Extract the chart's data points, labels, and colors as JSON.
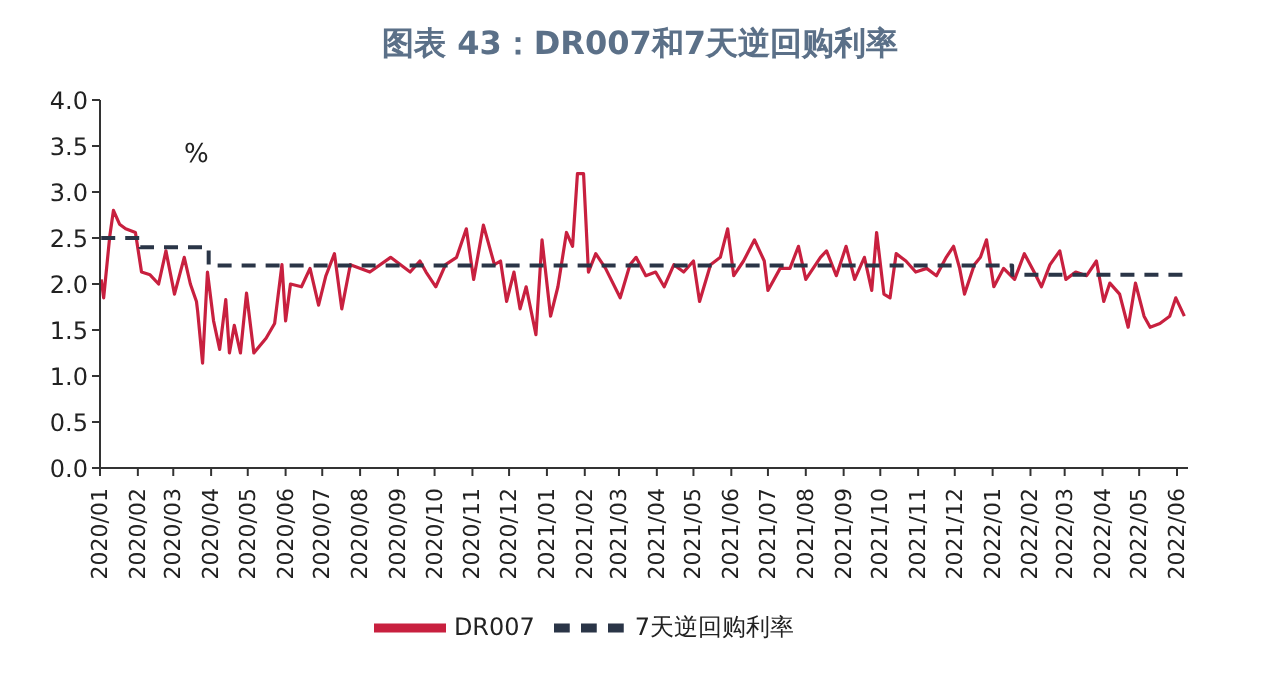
{
  "chart_data": {
    "type": "line",
    "title": "图表 43：DR007和7天逆回购利率",
    "ylabel": "%",
    "legend": "bottom",
    "xlim": [
      "2020-01-01",
      "2022-06-10"
    ],
    "xticks": [
      {
        "value": "2020-01",
        "label": "2020/01"
      },
      {
        "value": "2020-02",
        "label": "2020/02"
      },
      {
        "value": "2020-03",
        "label": "2020/03"
      },
      {
        "value": "2020-04",
        "label": "2020/04"
      },
      {
        "value": "2020-05",
        "label": "2020/05"
      },
      {
        "value": "2020-06",
        "label": "2020/06"
      },
      {
        "value": "2020-07",
        "label": "2020/07"
      },
      {
        "value": "2020-08",
        "label": "2020/08"
      },
      {
        "value": "2020-09",
        "label": "2020/09"
      },
      {
        "value": "2020-10",
        "label": "2020/10"
      },
      {
        "value": "2020-11",
        "label": "2020/11"
      },
      {
        "value": "2020-12",
        "label": "2020/12"
      },
      {
        "value": "2021-01",
        "label": "2021/01"
      },
      {
        "value": "2021-02",
        "label": "2021/02"
      },
      {
        "value": "2021-03",
        "label": "2021/03"
      },
      {
        "value": "2021-04",
        "label": "2021/04"
      },
      {
        "value": "2021-05",
        "label": "2021/05"
      },
      {
        "value": "2021-06",
        "label": "2021/06"
      },
      {
        "value": "2021-07",
        "label": "2021/07"
      },
      {
        "value": "2021-08",
        "label": "2021/08"
      },
      {
        "value": "2021-09",
        "label": "2021/09"
      },
      {
        "value": "2021-10",
        "label": "2021/10"
      },
      {
        "value": "2021-11",
        "label": "2021/11"
      },
      {
        "value": "2021-12",
        "label": "2021/12"
      },
      {
        "value": "2022-01",
        "label": "2022/01"
      },
      {
        "value": "2022-02",
        "label": "2022/02"
      },
      {
        "value": "2022-03",
        "label": "2022/03"
      },
      {
        "value": "2022-04",
        "label": "2022/04"
      },
      {
        "value": "2022-05",
        "label": "2022/05"
      },
      {
        "value": "2022-06",
        "label": "2022/06"
      }
    ],
    "ylim": [
      0,
      4
    ],
    "yticks": [
      {
        "value": 0,
        "label": "0.0"
      },
      {
        "value": 0.5,
        "label": "0.5"
      },
      {
        "value": 1,
        "label": "1.0"
      },
      {
        "value": 1.5,
        "label": "1.5"
      },
      {
        "value": 2,
        "label": "2.0"
      },
      {
        "value": 2.5,
        "label": "2.5"
      },
      {
        "value": 3,
        "label": "3.0"
      },
      {
        "value": 3.5,
        "label": "3.5"
      },
      {
        "value": 4,
        "label": "4.0"
      }
    ],
    "series": [
      {
        "name": "DR007",
        "type": "line",
        "color": "#c8203f",
        "line_style": "solid",
        "x": [
          "2020-01-02",
          "2020-01-04",
          "2020-01-09",
          "2020-01-12",
          "2020-01-17",
          "2020-01-22",
          "2020-01-30",
          "2020-02-04",
          "2020-02-11",
          "2020-02-18",
          "2020-02-24",
          "2020-03-02",
          "2020-03-10",
          "2020-03-15",
          "2020-03-20",
          "2020-03-21",
          "2020-03-25",
          "2020-03-29",
          "2020-04-03",
          "2020-04-08",
          "2020-04-13",
          "2020-04-16",
          "2020-04-20",
          "2020-04-25",
          "2020-04-30",
          "2020-05-06",
          "2020-05-16",
          "2020-05-23",
          "2020-05-29",
          "2020-06-01",
          "2020-06-05",
          "2020-06-14",
          "2020-06-21",
          "2020-06-28",
          "2020-07-04",
          "2020-07-11",
          "2020-07-17",
          "2020-07-24",
          "2020-08-09",
          "2020-08-26",
          "2020-09-11",
          "2020-09-19",
          "2020-09-24",
          "2020-10-02",
          "2020-10-10",
          "2020-10-19",
          "2020-10-27",
          "2020-11-02",
          "2020-11-10",
          "2020-11-19",
          "2020-11-24",
          "2020-11-29",
          "2020-12-05",
          "2020-12-10",
          "2020-12-15",
          "2020-12-23",
          "2020-12-28",
          "2021-01-04",
          "2021-01-10",
          "2021-01-17",
          "2021-01-22",
          "2021-01-26",
          "2021-01-31",
          "2021-02-04",
          "2021-02-10",
          "2021-02-18",
          "2021-03-02",
          "2021-03-10",
          "2021-03-15",
          "2021-03-23",
          "2021-03-31",
          "2021-04-07",
          "2021-04-15",
          "2021-04-23",
          "2021-05-01",
          "2021-05-06",
          "2021-05-15",
          "2021-05-23",
          "2021-05-29",
          "2021-06-03",
          "2021-06-11",
          "2021-06-20",
          "2021-06-28",
          "2021-07-01",
          "2021-07-11",
          "2021-07-19",
          "2021-07-26",
          "2021-08-01",
          "2021-08-13",
          "2021-08-18",
          "2021-08-26",
          "2021-09-03",
          "2021-09-10",
          "2021-09-18",
          "2021-09-24",
          "2021-09-28",
          "2021-10-04",
          "2021-10-09",
          "2021-10-14",
          "2021-10-22",
          "2021-10-30",
          "2021-11-08",
          "2021-11-16",
          "2021-11-24",
          "2021-11-30",
          "2021-12-05",
          "2021-12-09",
          "2021-12-17",
          "2021-12-22",
          "2021-12-27",
          "2022-01-02",
          "2022-01-10",
          "2022-01-19",
          "2022-01-27",
          "2022-02-04",
          "2022-02-10",
          "2022-02-17",
          "2022-02-25",
          "2022-03-02",
          "2022-03-10",
          "2022-03-19",
          "2022-03-27",
          "2022-04-02",
          "2022-04-07",
          "2022-04-15",
          "2022-04-22",
          "2022-04-28",
          "2022-05-05",
          "2022-05-10",
          "2022-05-18",
          "2022-05-26",
          "2022-05-31",
          "2022-06-07"
        ],
        "values": [
          2.05,
          1.85,
          2.52,
          2.8,
          2.65,
          2.6,
          2.56,
          2.13,
          2.1,
          2.0,
          2.36,
          1.89,
          2.29,
          2.0,
          1.81,
          1.7,
          1.14,
          2.13,
          1.6,
          1.29,
          1.83,
          1.25,
          1.55,
          1.25,
          1.9,
          1.25,
          1.41,
          1.57,
          2.21,
          1.6,
          2.0,
          1.97,
          2.17,
          1.77,
          2.09,
          2.33,
          1.73,
          2.21,
          2.13,
          2.29,
          2.13,
          2.25,
          2.13,
          1.97,
          2.21,
          2.29,
          2.6,
          2.05,
          2.64,
          2.21,
          2.25,
          1.81,
          2.13,
          1.73,
          1.97,
          1.45,
          2.48,
          1.65,
          1.97,
          2.56,
          2.41,
          3.2,
          3.2,
          2.13,
          2.33,
          2.17,
          1.85,
          2.21,
          2.29,
          2.09,
          2.13,
          1.97,
          2.21,
          2.13,
          2.25,
          1.81,
          2.21,
          2.29,
          2.6,
          2.09,
          2.25,
          2.48,
          2.25,
          1.93,
          2.17,
          2.17,
          2.41,
          2.05,
          2.29,
          2.36,
          2.09,
          2.41,
          2.05,
          2.29,
          1.93,
          2.56,
          1.89,
          1.85,
          2.33,
          2.25,
          2.13,
          2.17,
          2.09,
          2.29,
          2.41,
          2.17,
          1.89,
          2.21,
          2.29,
          2.48,
          1.97,
          2.17,
          2.05,
          2.33,
          2.13,
          1.97,
          2.21,
          2.36,
          2.05,
          2.13,
          2.09,
          2.25,
          1.81,
          2.01,
          1.89,
          1.53,
          2.01,
          1.65,
          1.53,
          1.57,
          1.65,
          1.85,
          1.65
        ]
      },
      {
        "name": "7天逆回购利率",
        "type": "step",
        "color": "#2a3547",
        "line_style": "dashed",
        "x": [
          "2020-01-02",
          "2020-02-03",
          "2020-03-30",
          "2022-01-17",
          "2022-06-07"
        ],
        "values": [
          2.5,
          2.4,
          2.2,
          2.1,
          2.1
        ]
      }
    ]
  }
}
